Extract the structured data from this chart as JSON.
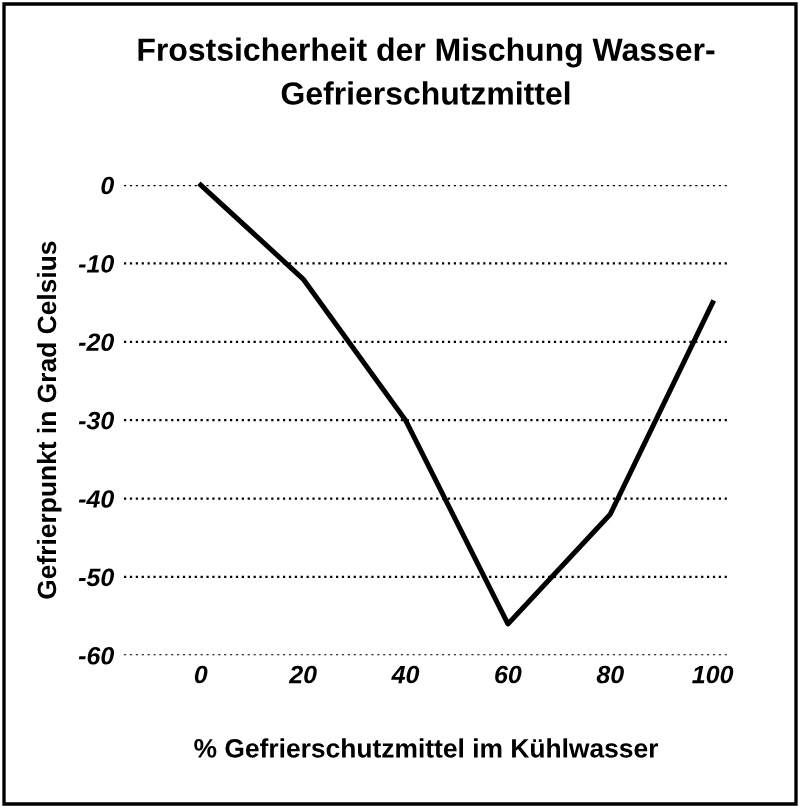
{
  "chart_data": {
    "type": "line",
    "title": "Frostsicherheit der Mischung Wasser-\nGefrierschutzmittel",
    "xlabel": "% Gefrierschutzmittel im Kühlwasser",
    "ylabel": "Gefrierpunkt in Grad Celsius",
    "x": [
      0,
      20,
      40,
      60,
      80,
      100
    ],
    "series": [
      {
        "color": "#000000",
        "values": [
          0,
          -12,
          -30,
          -56,
          -42,
          -15
        ]
      }
    ],
    "xlim": [
      -15,
      103
    ],
    "xticks": [
      0,
      20,
      40,
      60,
      80,
      100
    ],
    "ylim": [
      -60,
      0
    ],
    "yticks": [
      0,
      -10,
      -20,
      -30,
      -40,
      -50,
      -60
    ],
    "grid": "y",
    "line_style": "solid",
    "marker": "none",
    "legend": false
  }
}
